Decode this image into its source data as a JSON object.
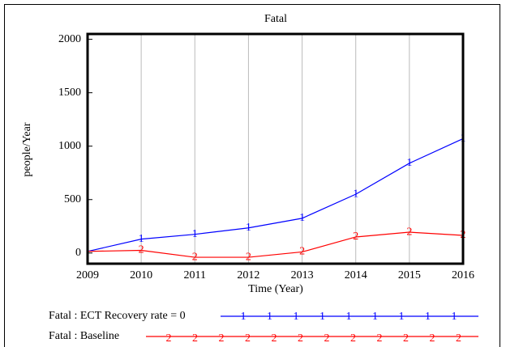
{
  "chart_data": {
    "type": "line",
    "title": "Fatal",
    "x_label": "Time (Year)",
    "y_label": "people/Year",
    "x": [
      2009,
      2010,
      2011,
      2012,
      2013,
      2014,
      2015,
      2016
    ],
    "series": [
      {
        "name": "Fatal : ECT Recovery rate = 0",
        "color": "#0000ff",
        "marker": "1",
        "values": [
          15,
          130,
          175,
          235,
          325,
          550,
          840,
          1070
        ]
      },
      {
        "name": "Fatal : Baseline",
        "color": "#ff0000",
        "marker": "2",
        "values": [
          15,
          25,
          -40,
          -40,
          10,
          150,
          195,
          165
        ]
      }
    ],
    "xlim": [
      2009,
      2016
    ],
    "xticks": [
      2009,
      2010,
      2011,
      2012,
      2013,
      2014,
      2015,
      2016
    ],
    "ylim": [
      -100,
      2050
    ],
    "yticks": [
      0,
      500,
      1000,
      1500,
      2000
    ],
    "grid": true
  }
}
